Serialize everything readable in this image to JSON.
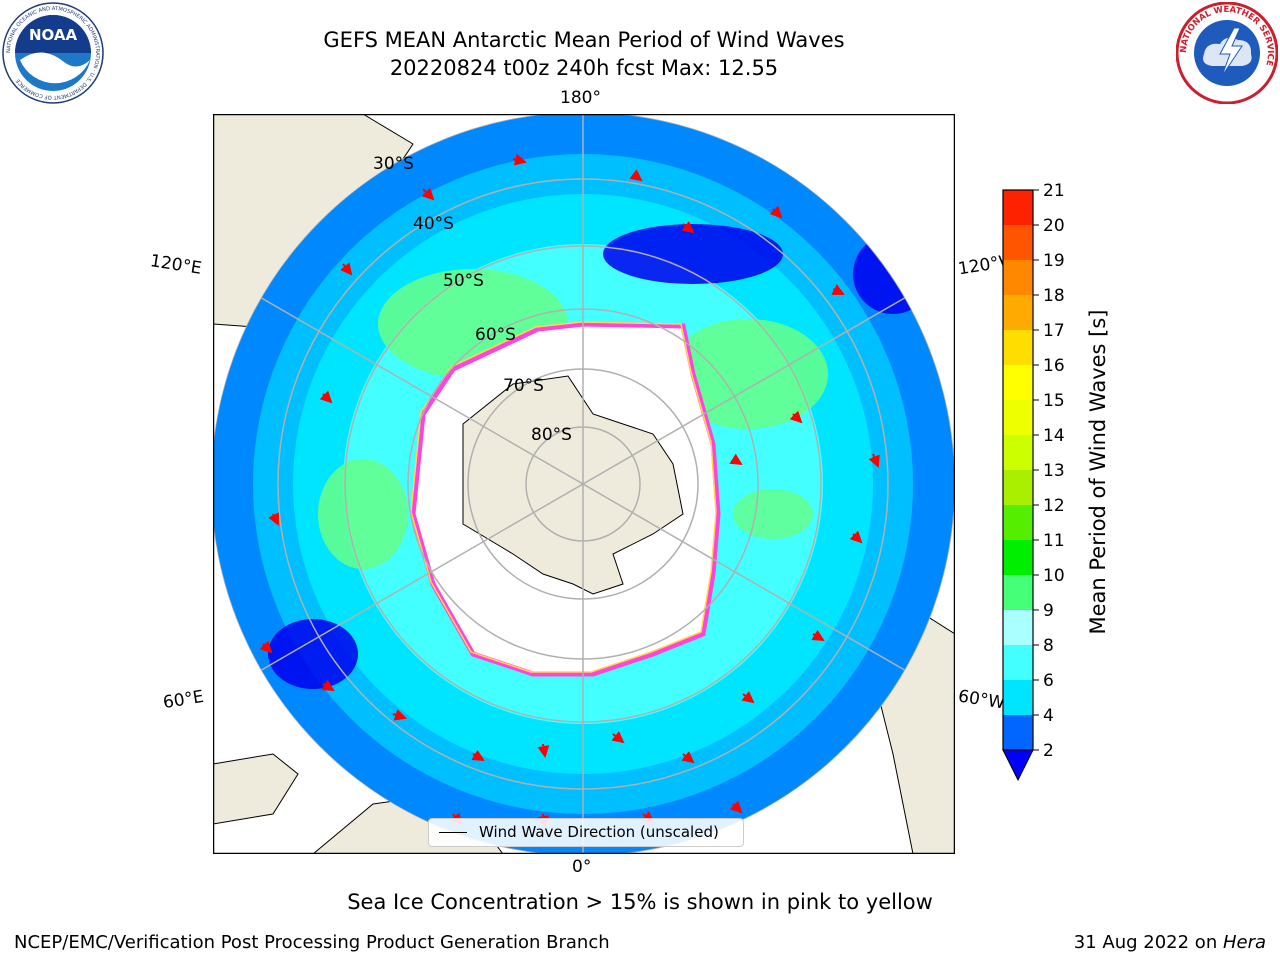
{
  "title": {
    "line1": "GEFS MEAN Antarctic Mean Period of Wind Waves",
    "line2": "20220824 t00z 240h fcst   Max: 12.55"
  },
  "logos": {
    "left": {
      "name": "noaa-logo",
      "text": "NOAA",
      "ring_text": "NATIONAL OCEANIC AND ATMOSPHERIC ADMINISTRATION · U.S. DEPARTMENT OF COMMERCE"
    },
    "right": {
      "name": "nws-logo",
      "ring_text": "NATIONAL WEATHER SERVICE"
    }
  },
  "map": {
    "projection": "south polar stereographic",
    "longitude_labels": {
      "top": "180°",
      "bottom": "0°",
      "upper_left": "120°E",
      "upper_right": "120°W",
      "lower_left": "60°E",
      "lower_right": "60°W"
    },
    "latitude_labels": [
      "30°S",
      "40°S",
      "50°S",
      "60°S",
      "70°S",
      "80°S"
    ],
    "legend": "Wind Wave Direction (unscaled)",
    "colors": {
      "land": "#efebdc",
      "ice_edge": "#ff44dd",
      "ice_edge_outer": "#ffd84a",
      "arrows": "#ff0000",
      "grid": "#b0b0b0"
    }
  },
  "colorbar": {
    "label": "Mean Period of Wind Waves [s]",
    "ticks": [
      "2",
      "4",
      "6",
      "8",
      "9",
      "10",
      "11",
      "12",
      "13",
      "14",
      "15",
      "16",
      "17",
      "18",
      "19",
      "20",
      "21"
    ],
    "colors": [
      "#0066ff",
      "#00e5ff",
      "#44ffff",
      "#aaffff",
      "#44ff77",
      "#00ee00",
      "#55ee00",
      "#aaee00",
      "#ccff00",
      "#eeff00",
      "#ffff00",
      "#ffdd00",
      "#ffaa00",
      "#ff8800",
      "#ff5500",
      "#ff2200",
      "#ff0000"
    ],
    "extend_color": "#0000ff"
  },
  "bottom_note": "Sea Ice Concentration > 15% is shown in pink to yellow",
  "footer": {
    "left": "NCEP/EMC/Verification Post Processing Product Generation Branch",
    "right_date": "31 Aug 2022 on ",
    "right_host": "Hera"
  }
}
